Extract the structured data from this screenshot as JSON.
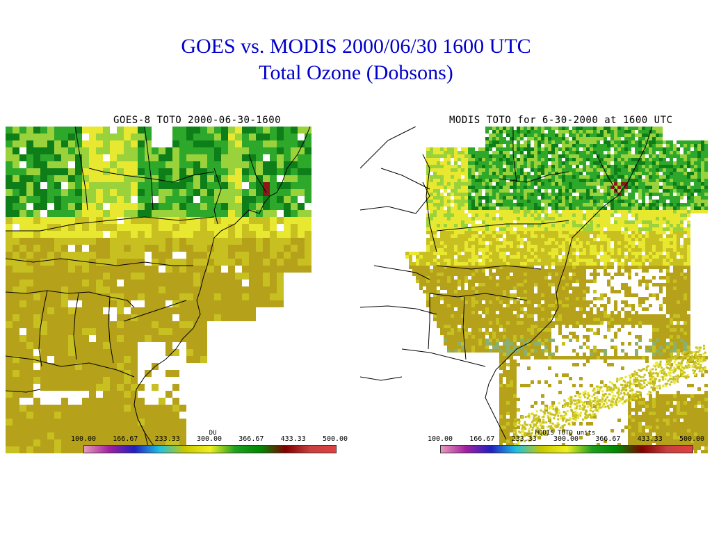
{
  "slide": {
    "title_line1": "GOES vs. MODIS 2000/06/30 1600 UTC",
    "title_line2": "Total Ozone (Dobsons)",
    "title_color": "#0000cc"
  },
  "panels": [
    {
      "id": "goes",
      "map_title": "GOES-8 TOTO 2000-06-30-1600",
      "units_label": "DU",
      "colorbar_ticks": [
        "100.00",
        "166.67",
        "233.33",
        "300.00",
        "366.67",
        "433.33",
        "500.00"
      ]
    },
    {
      "id": "modis",
      "map_title": "MODIS TOTO for 6-30-2000 at 1600 UTC",
      "units_label": "MODIS TOTO units",
      "colorbar_ticks": [
        "100.00",
        "166.67",
        "233.33",
        "300.00",
        "366.67",
        "433.33",
        "500.00"
      ]
    }
  ],
  "colorbar": {
    "range": [
      100,
      500
    ],
    "stops": [
      "#e89ab8",
      "#a020a0",
      "#2020c0",
      "#20c0e0",
      "#c8c800",
      "#f0f020",
      "#20a020",
      "#008800",
      "#800000",
      "#c84040",
      "#e04040"
    ]
  },
  "palette": {
    "olive": "#b5a21a",
    "olive_light": "#c8c020",
    "yellow": "#e8e830",
    "light_green": "#9ad23c",
    "green": "#2ea82a",
    "dark_green": "#0e7e18",
    "dark_red": "#8a1a1a",
    "grey_green": "#8ab070",
    "map_lines": "#000000"
  }
}
